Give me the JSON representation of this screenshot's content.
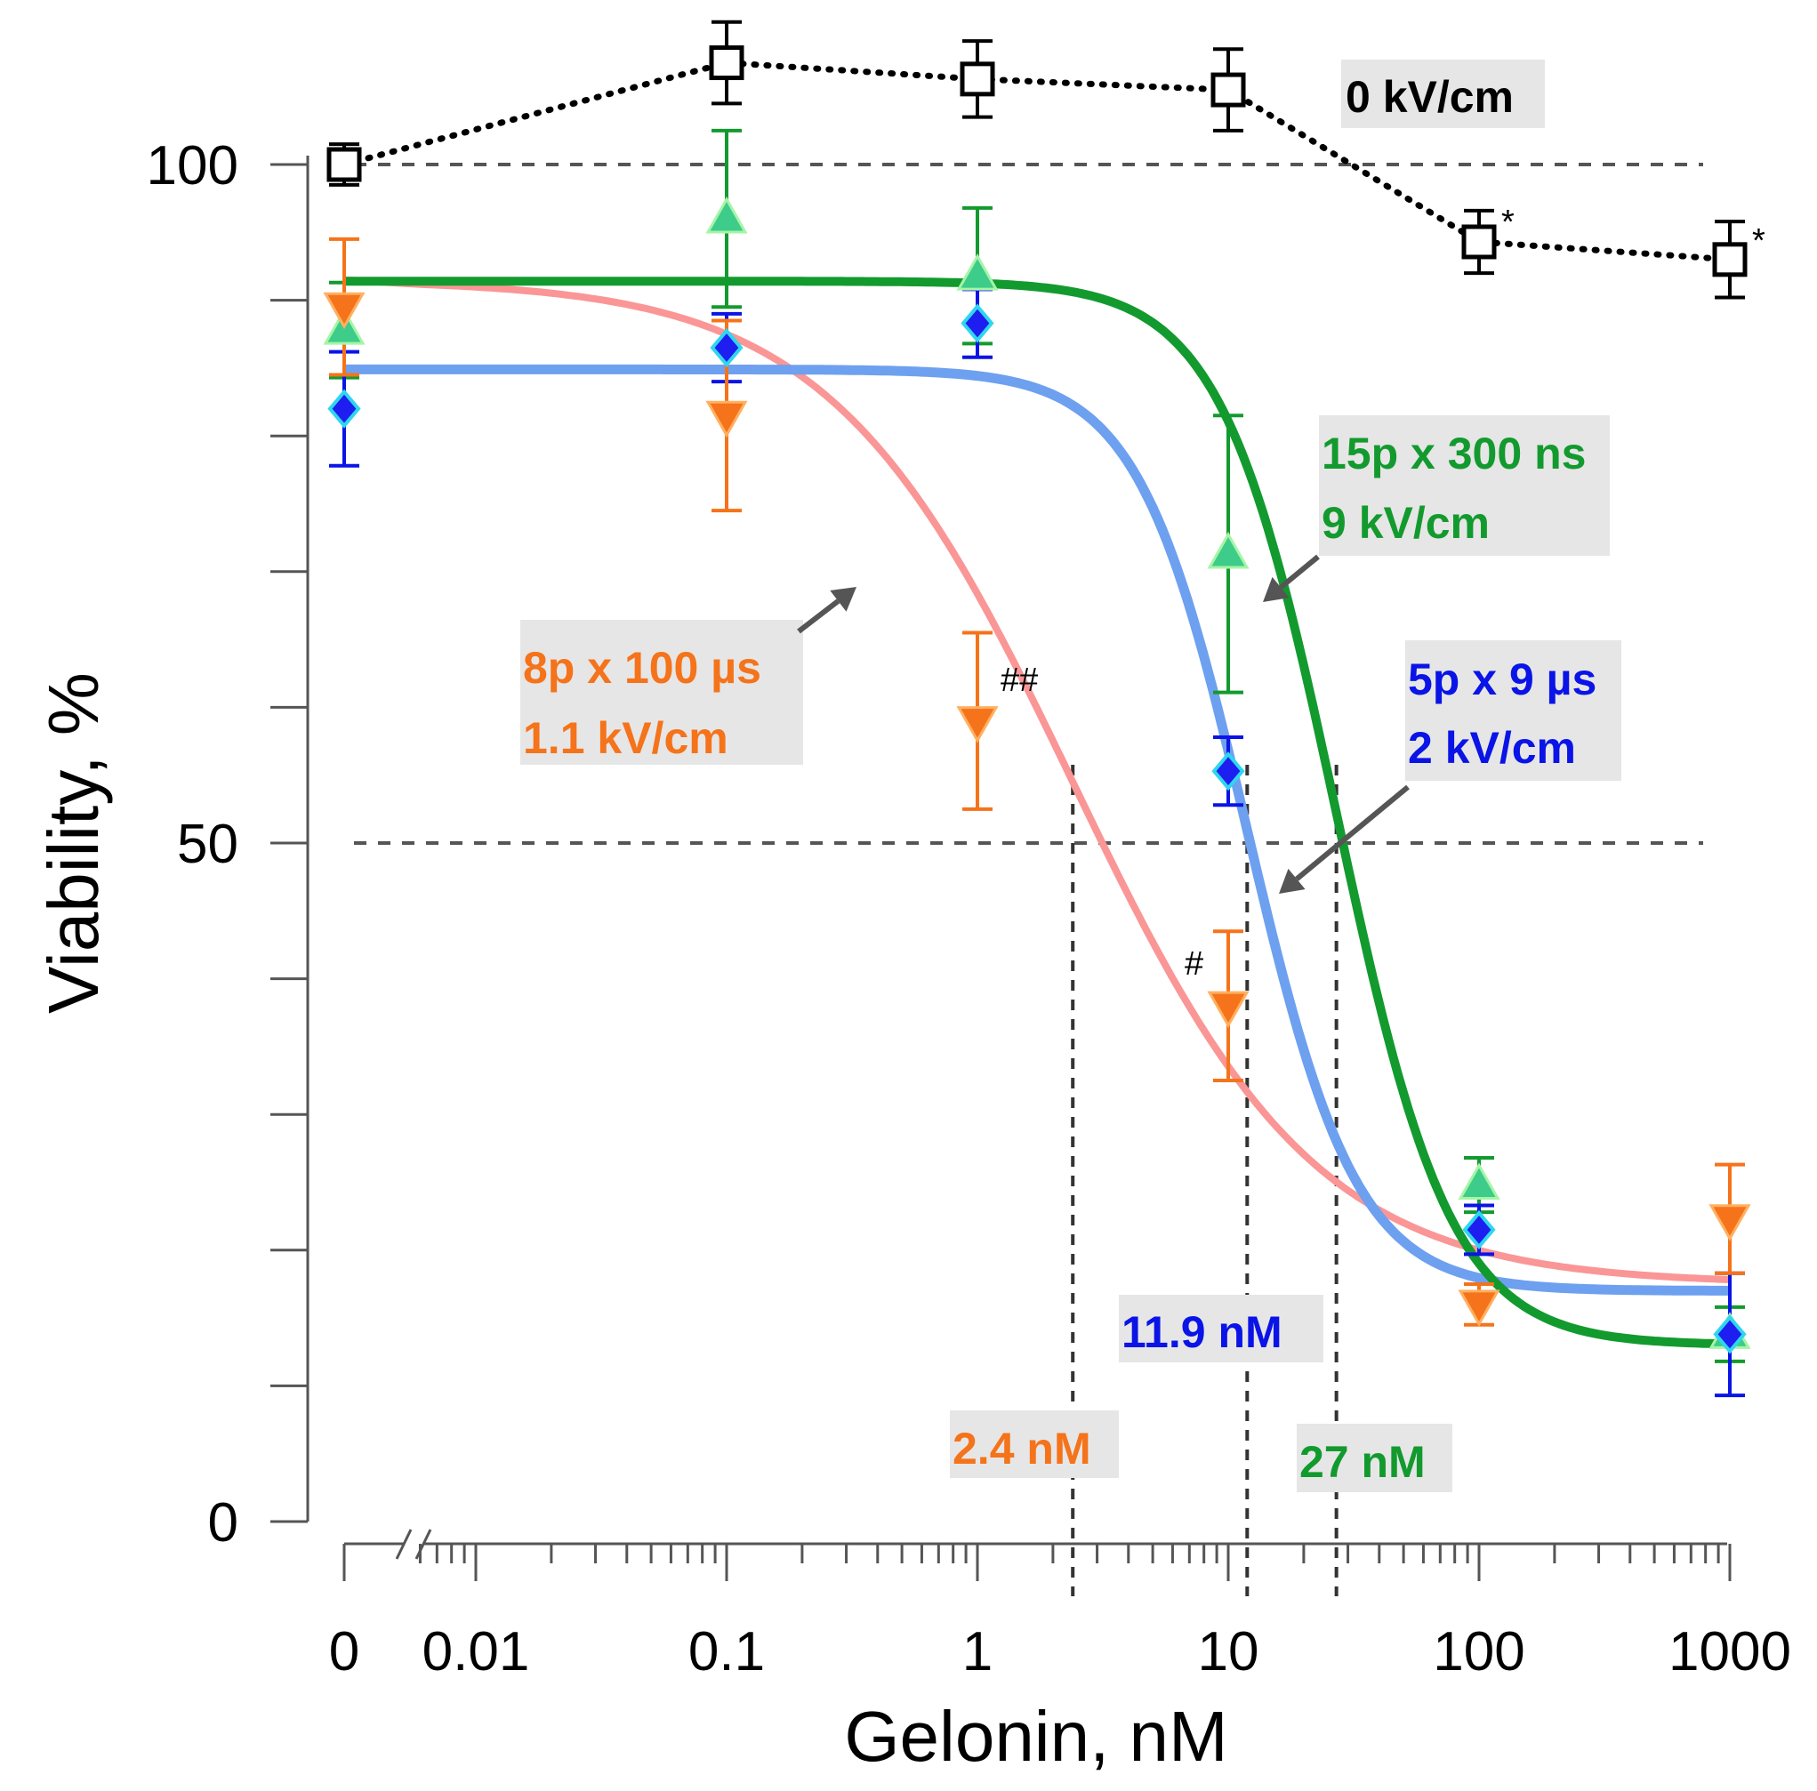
{
  "chart_data": {
    "type": "scatter",
    "title": "",
    "xlabel": "Gelonin, nM",
    "ylabel": "Viability, %",
    "xscale": "log with broken axis at zero",
    "xlim": [
      0,
      1000
    ],
    "ylim": [
      0,
      100
    ],
    "x_tick_labels": [
      "0",
      "0.01",
      "0.1",
      "1",
      "10",
      "100",
      "1000"
    ],
    "y_tick_labels": [
      "0",
      "50",
      "100"
    ],
    "reference_lines_y": [
      50,
      100
    ],
    "colors": {
      "control": "#000000",
      "ns": "#139a2e",
      "ns_fill": "#3dcc8a",
      "us9": "#0a14e6",
      "us9_fill": "#1e1ef0",
      "us9_fit": "#6ea0f0",
      "us100": "#f5731a",
      "us100_fit": "#fa9696",
      "label_bg": "#e6e6e6"
    },
    "series": [
      {
        "name": "0 kV/cm",
        "marker": "open-square",
        "style": "dotted",
        "x": [
          0,
          0.1,
          1,
          10,
          100,
          1000
        ],
        "y": [
          100,
          107.5,
          106.3,
          105.5,
          94.3,
          93.0
        ],
        "err": [
          1.5,
          3.0,
          2.8,
          3.0,
          2.3,
          2.8
        ]
      },
      {
        "name": "15p x 300 ns 9 kV/cm",
        "marker": "triangle-up",
        "x": [
          0,
          0.1,
          1,
          10,
          100,
          1000
        ],
        "y": [
          87.8,
          96.0,
          91.8,
          71.3,
          24.8,
          13.8
        ],
        "err": [
          3.5,
          6.5,
          5.0,
          10.2,
          2.0,
          2.0
        ],
        "fit": {
          "top": 91.4,
          "bottom": 13.0,
          "ec50": 27.0,
          "hill": 1.9
        }
      },
      {
        "name": "5p x 9 µs 2 kV/cm",
        "marker": "diamond",
        "x": [
          0,
          0.1,
          1,
          10,
          100,
          1000
        ],
        "y": [
          82.0,
          86.5,
          88.3,
          55.3,
          21.5,
          13.8
        ],
        "err": [
          4.2,
          2.5,
          2.5,
          2.5,
          1.8,
          4.5
        ],
        "fit": {
          "top": 84.9,
          "bottom": 17.0,
          "ec50": 11.9,
          "hill": 2.0
        }
      },
      {
        "name": "8p x 100 µs 1.1 kV/cm",
        "marker": "triangle-down",
        "x": [
          0,
          0.1,
          1,
          10,
          100,
          1000
        ],
        "y": [
          89.5,
          81.5,
          59.0,
          38.0,
          16.0,
          22.3
        ],
        "err": [
          5.0,
          7.0,
          6.5,
          5.5,
          1.5,
          4.0
        ],
        "fit": {
          "top": 91.5,
          "bottom": 17.5,
          "ec50": 2.4,
          "hill": 0.9
        }
      }
    ],
    "ec50_lines": [
      {
        "x": 2.4,
        "label": "2.4 nM"
      },
      {
        "x": 11.9,
        "label": "11.9 nM"
      },
      {
        "x": 27,
        "label": "27 nM"
      }
    ],
    "annotations": {
      "control_label": "0 kV/cm",
      "ns_line1": "15p x 300 ns",
      "ns_line2": "9 kV/cm",
      "us9_line1": "5p x 9 µs",
      "us9_line2": "2 kV/cm",
      "us100_line1": "8p x 100 µs",
      "us100_line2": "1.1 kV/cm",
      "significance_star": "*",
      "sig_double_hash": "##",
      "sig_hash": "#"
    }
  }
}
